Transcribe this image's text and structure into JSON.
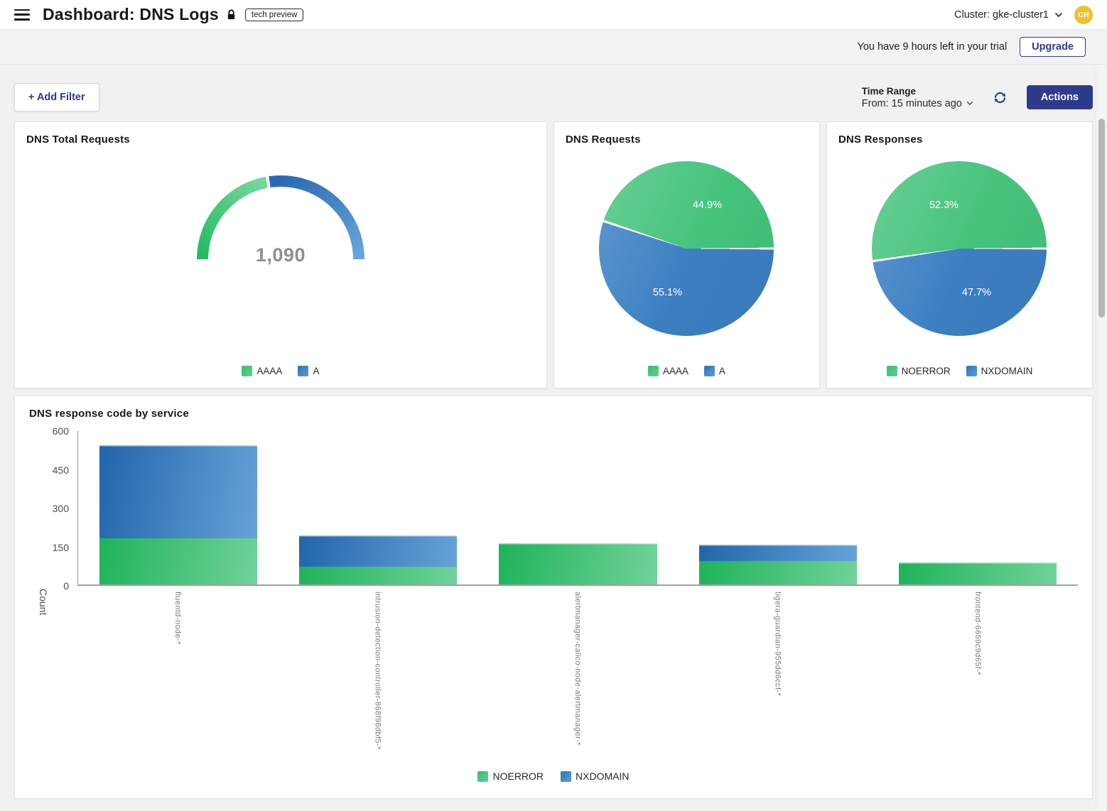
{
  "header": {
    "title": "Dashboard: DNS Logs",
    "badge": "tech preview",
    "cluster_label": "Cluster: gke-cluster1",
    "avatar_initials": "CH"
  },
  "trial": {
    "message": "You have 9 hours left in your trial",
    "upgrade_label": "Upgrade"
  },
  "toolbar": {
    "add_filter_label": "+ Add Filter",
    "time_range_label": "Time Range",
    "time_range_value": "From: 15 minutes ago",
    "actions_label": "Actions"
  },
  "icons": {
    "menu": "hamburger-icon",
    "lock": "lock-icon",
    "cluster_chevron": "chevron-down-icon",
    "time_range_chevron": "chevron-down-icon",
    "refresh": "refresh-icon"
  },
  "colors": {
    "green": "#45c37b",
    "blue": "#3b7fc2",
    "navy_accent": "#2e3a8c",
    "avatar_gold": "#efc12f",
    "gauge_value_gray": "#8e8e8e"
  },
  "chart_data": [
    {
      "type": "gauge",
      "title": "DNS Total Requests",
      "value": "1,090",
      "series": [
        {
          "name": "AAAA",
          "percent": 44.9,
          "color": "#45c37b"
        },
        {
          "name": "A",
          "percent": 55.1,
          "color": "#3b7fc2"
        }
      ]
    },
    {
      "type": "pie",
      "title": "DNS Requests",
      "slices": [
        {
          "label": "AAAA",
          "percent": 44.9,
          "display": "44.9%",
          "color": "#45c37b"
        },
        {
          "label": "A",
          "percent": 55.1,
          "display": "55.1%",
          "color": "#3b7fc2"
        }
      ],
      "legend_position": "bottom"
    },
    {
      "type": "pie",
      "title": "DNS Responses",
      "slices": [
        {
          "label": "NOERROR",
          "percent": 52.3,
          "display": "52.3%",
          "color": "#45c37b"
        },
        {
          "label": "NXDOMAIN",
          "percent": 47.7,
          "display": "47.7%",
          "color": "#3b7fc2"
        }
      ],
      "legend_position": "bottom"
    },
    {
      "type": "bar",
      "title": "DNS response code by service",
      "ylabel": "Count",
      "ylim": [
        0,
        600
      ],
      "yticks": [
        0,
        150,
        300,
        450,
        600
      ],
      "stacked": true,
      "grid": false,
      "legend_position": "bottom",
      "categories": [
        "fluentd-node-*",
        "intrusion-detection-controller-868f98dbf5-*",
        "alertmanager-calico-node-alertmanager-*",
        "tigera-guardian-955dd6ccf-*",
        "frontend-6659c9d65f-*"
      ],
      "series": [
        {
          "name": "NOERROR",
          "color": "#45c37b",
          "values": [
            180,
            70,
            160,
            90,
            85
          ]
        },
        {
          "name": "NXDOMAIN",
          "color": "#3b7fc2",
          "values": [
            360,
            120,
            0,
            65,
            0
          ]
        }
      ]
    }
  ]
}
